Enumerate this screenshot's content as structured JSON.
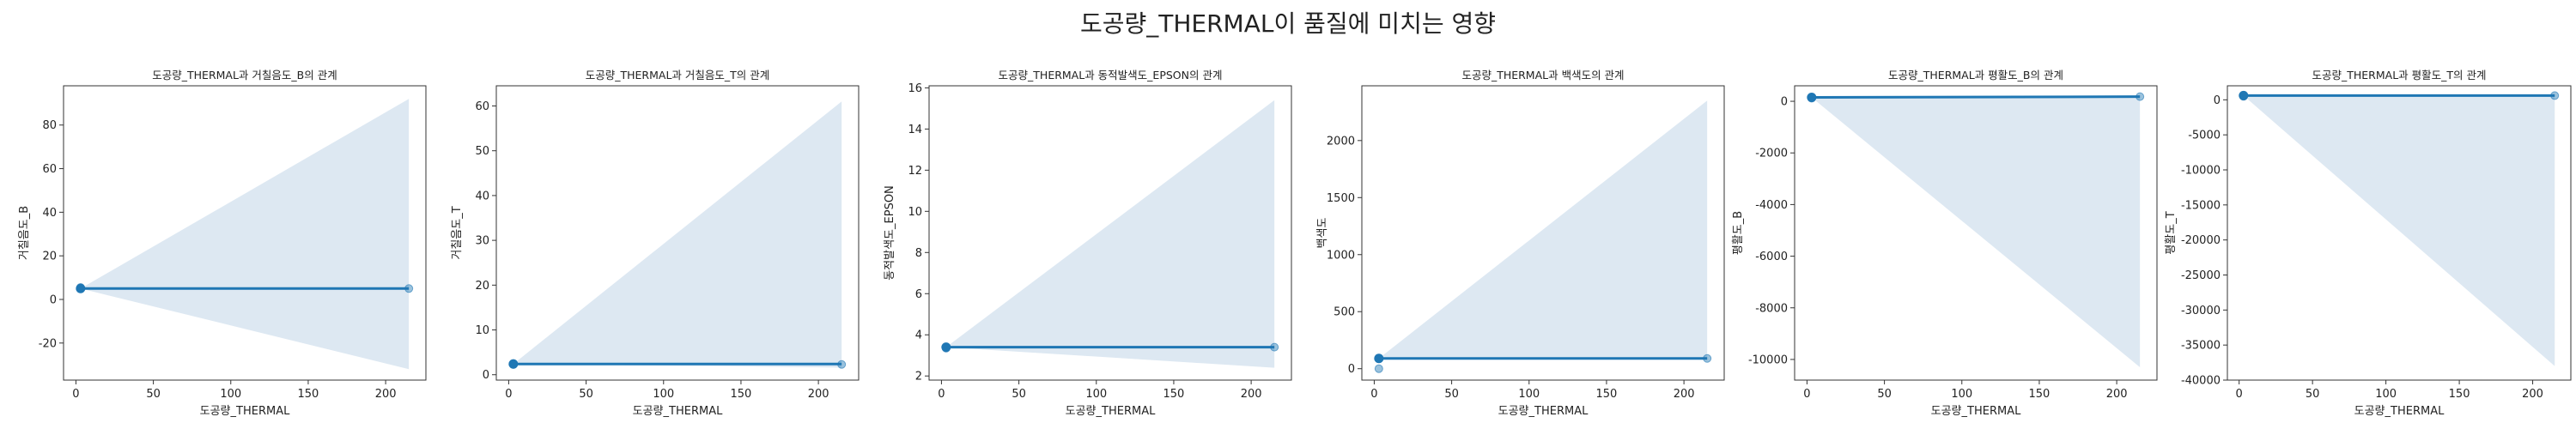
{
  "figure": {
    "suptitle": "도공량_THERMAL이 품질에 미치는 영향"
  },
  "colors": {
    "line": "#1f77b4",
    "band": "#dde8f2",
    "axis": "#333333"
  },
  "chart_data": [
    {
      "type": "scatter",
      "title": "도공량_THERMAL과 거칠음도_B의 관계",
      "xlabel": "도공량_THERMAL",
      "ylabel": "거칠음도_B",
      "xlim": [
        -8,
        226
      ],
      "ylim": [
        -37,
        98
      ],
      "xticks": [
        0,
        50,
        100,
        150,
        200
      ],
      "yticks": [
        -20,
        0,
        20,
        40,
        60,
        80
      ],
      "points": [
        [
          3,
          5
        ],
        [
          3,
          5.5
        ],
        [
          215,
          5
        ]
      ],
      "regression": {
        "x": [
          3,
          215
        ],
        "y": [
          5,
          5
        ]
      },
      "ci_band": {
        "x": [
          3,
          215
        ],
        "lower": [
          5,
          -32
        ],
        "upper": [
          5,
          92
        ]
      }
    },
    {
      "type": "scatter",
      "title": "도공량_THERMAL과 거칠음도_T의 관계",
      "xlabel": "도공량_THERMAL",
      "ylabel": "거칠음도_T",
      "xlim": [
        -8,
        226
      ],
      "ylim": [
        -1.2,
        64.5
      ],
      "xticks": [
        0,
        50,
        100,
        150,
        200
      ],
      "yticks": [
        0,
        10,
        20,
        30,
        40,
        50,
        60
      ],
      "points": [
        [
          3,
          2.5
        ],
        [
          3,
          2.3
        ],
        [
          215,
          2.3
        ]
      ],
      "regression": {
        "x": [
          3,
          215
        ],
        "y": [
          2.4,
          2.4
        ]
      },
      "ci_band": {
        "x": [
          3,
          215
        ],
        "lower": [
          2.4,
          1.6
        ],
        "upper": [
          2.4,
          61
        ]
      }
    },
    {
      "type": "scatter",
      "title": "도공량_THERMAL과 동적발색도_EPSON의 관계",
      "xlabel": "도공량_THERMAL",
      "ylabel": "동적발색도_EPSON",
      "xlim": [
        -8,
        226
      ],
      "ylim": [
        1.8,
        16.1
      ],
      "xticks": [
        0,
        50,
        100,
        150,
        200
      ],
      "yticks": [
        2,
        4,
        6,
        8,
        10,
        12,
        14,
        16
      ],
      "points": [
        [
          3,
          3.4
        ],
        [
          3,
          3.35
        ],
        [
          215,
          3.4
        ]
      ],
      "regression": {
        "x": [
          3,
          215
        ],
        "y": [
          3.4,
          3.4
        ]
      },
      "ci_band": {
        "x": [
          3,
          215
        ],
        "lower": [
          3.4,
          2.4
        ],
        "upper": [
          3.4,
          15.4
        ]
      }
    },
    {
      "type": "scatter",
      "title": "도공량_THERMAL과 백색도의 관계",
      "xlabel": "도공량_THERMAL",
      "ylabel": "백색도",
      "xlim": [
        -8,
        226
      ],
      "ylim": [
        -100,
        2480
      ],
      "xticks": [
        0,
        50,
        100,
        150,
        200
      ],
      "yticks": [
        0,
        500,
        1000,
        1500,
        2000
      ],
      "points": [
        [
          3,
          90
        ],
        [
          3,
          0
        ],
        [
          215,
          90
        ]
      ],
      "regression": {
        "x": [
          3,
          215
        ],
        "y": [
          90,
          90
        ]
      },
      "ci_band": {
        "x": [
          3,
          215
        ],
        "lower": [
          90,
          80
        ],
        "upper": [
          90,
          2350
        ]
      }
    },
    {
      "type": "scatter",
      "title": "도공량_THERMAL과 평활도_B의 관계",
      "xlabel": "도공량_THERMAL",
      "ylabel": "평활도_B",
      "xlim": [
        -8,
        226
      ],
      "ylim": [
        -10800,
        600
      ],
      "xticks": [
        0,
        50,
        100,
        150,
        200
      ],
      "yticks": [
        0,
        -2000,
        -4000,
        -6000,
        -8000,
        -10000
      ],
      "points": [
        [
          3,
          150
        ],
        [
          3,
          120
        ],
        [
          215,
          180
        ]
      ],
      "regression": {
        "x": [
          3,
          215
        ],
        "y": [
          150,
          180
        ]
      },
      "ci_band": {
        "x": [
          3,
          215
        ],
        "lower": [
          150,
          -10300
        ],
        "upper": [
          150,
          200
        ]
      }
    },
    {
      "type": "scatter",
      "title": "도공량_THERMAL과 평활도_T의 관계",
      "xlabel": "도공량_THERMAL",
      "ylabel": "평활도_T",
      "xlim": [
        -8,
        226
      ],
      "ylim": [
        -40000,
        2000
      ],
      "xticks": [
        0,
        50,
        100,
        150,
        200
      ],
      "yticks": [
        0,
        -5000,
        -10000,
        -15000,
        -20000,
        -25000,
        -30000,
        -35000,
        -40000
      ],
      "points": [
        [
          3,
          600
        ],
        [
          3,
          500
        ],
        [
          215,
          600
        ]
      ],
      "regression": {
        "x": [
          3,
          215
        ],
        "y": [
          600,
          600
        ]
      },
      "ci_band": {
        "x": [
          3,
          215
        ],
        "lower": [
          600,
          -38000
        ],
        "upper": [
          600,
          650
        ]
      }
    }
  ]
}
